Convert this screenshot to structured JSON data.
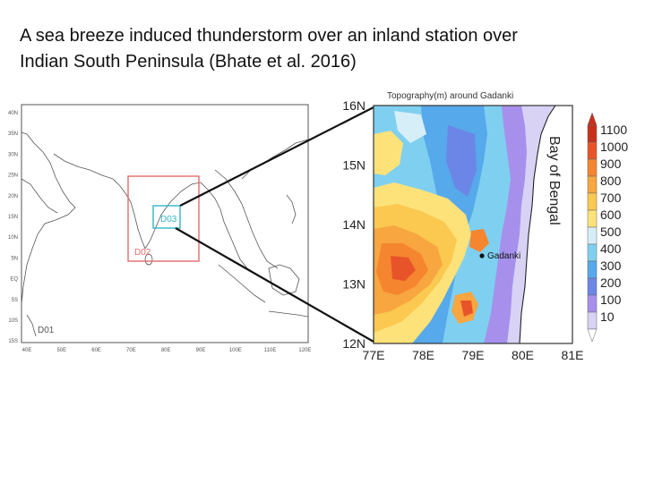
{
  "slide": {
    "title_line1": "A sea breeze induced thunderstorm over an inland station over",
    "title_line2": "Indian South Peninsula (Bhate et al. 2016)"
  },
  "domain_map": {
    "lat_labels": [
      "40N",
      "35N",
      "30N",
      "25N",
      "20N",
      "15N",
      "10N",
      "5N",
      "EQ",
      "5S",
      "10S",
      "15S"
    ],
    "lon_labels": [
      "40E",
      "50E",
      "60E",
      "70E",
      "80E",
      "90E",
      "100E",
      "110E",
      "120E"
    ],
    "domains": [
      {
        "name": "D01",
        "color": "#555555"
      },
      {
        "name": "D02",
        "color": "#e06b6b"
      },
      {
        "name": "D03",
        "color": "#2fb6c8"
      }
    ]
  },
  "topo_map": {
    "title": "Topography(m) around Gadanki",
    "station": "Gadanki",
    "water_label": "Bay of Bengal",
    "lat_labels": [
      "16N",
      "15N",
      "14N",
      "13N",
      "12N"
    ],
    "lon_labels": [
      "77E",
      "78E",
      "79E",
      "80E",
      "81E"
    ]
  },
  "colorbar": {
    "levels": [
      {
        "label": "1100",
        "color": "#c8301c"
      },
      {
        "label": "1000",
        "color": "#e8542a"
      },
      {
        "label": "900",
        "color": "#f5852f"
      },
      {
        "label": "800",
        "color": "#f7a640"
      },
      {
        "label": "700",
        "color": "#fbc850"
      },
      {
        "label": "600",
        "color": "#fde27a"
      },
      {
        "label": "500",
        "color": "#d6eef7"
      },
      {
        "label": "400",
        "color": "#7fd0f0"
      },
      {
        "label": "300",
        "color": "#56a9ea"
      },
      {
        "label": "200",
        "color": "#6b86e6"
      },
      {
        "label": "100",
        "color": "#a690ec"
      },
      {
        "label": "10",
        "color": "#d8d2f5"
      }
    ]
  }
}
